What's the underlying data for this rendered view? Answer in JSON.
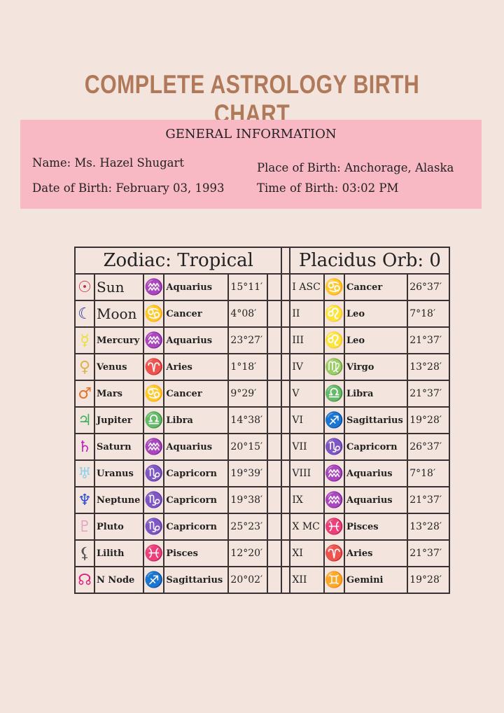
{
  "title": "COMPLETE ASTROLOGY BIRTH CHART",
  "general": {
    "heading": "GENERAL INFORMATION",
    "name": "Name: Ms. Hazel Shugart",
    "dob": "Date of Birth: February 03, 1993",
    "place": "Place of Birth: Anchorage, Alaska",
    "time": "Time of Birth: 03:02 PM"
  },
  "table": {
    "zodiac_header": "Zodiac: Tropical",
    "orb_header": "Placidus Orb: 0",
    "planets": [
      {
        "glyph": "☉",
        "color": "#c0304a",
        "name": "Sun",
        "sign_glyph": "♒",
        "sign_color": "#6a6ae0",
        "sign": "Aquarius",
        "degree": "15°11′"
      },
      {
        "glyph": "☾",
        "color": "#2a3aa0",
        "name": "Moon",
        "sign_glyph": "♋",
        "sign_color": "#4cbb70",
        "sign": "Cancer",
        "degree": "4°08′"
      },
      {
        "glyph": "☿",
        "color": "#e8e030",
        "name": "Mercury",
        "sign_glyph": "♒",
        "sign_color": "#6a6ae0",
        "sign": "Aquarius",
        "degree": "23°27′"
      },
      {
        "glyph": "♀",
        "color": "#e0b050",
        "name": "Venus",
        "sign_glyph": "♈",
        "sign_color": "#c02040",
        "sign": "Aries",
        "degree": "1°18′"
      },
      {
        "glyph": "♂",
        "color": "#e87020",
        "name": "Mars",
        "sign_glyph": "♋",
        "sign_color": "#4cbb70",
        "sign": "Cancer",
        "degree": "9°29′"
      },
      {
        "glyph": "♃",
        "color": "#40b060",
        "name": "Jupiter",
        "sign_glyph": "♎",
        "sign_color": "#e0308a",
        "sign": "Libra",
        "degree": "14°38′"
      },
      {
        "glyph": "♄",
        "color": "#c020c0",
        "name": "Saturn",
        "sign_glyph": "♒",
        "sign_color": "#6a6ae0",
        "sign": "Aquarius",
        "degree": "20°15′"
      },
      {
        "glyph": "♅",
        "color": "#90d0e8",
        "name": "Uranus",
        "sign_glyph": "♑",
        "sign_color": "#f0a020",
        "sign": "Capricorn",
        "degree": "19°39′"
      },
      {
        "glyph": "♆",
        "color": "#3050d0",
        "name": "Neptune",
        "sign_glyph": "♑",
        "sign_color": "#f0a020",
        "sign": "Capricorn",
        "degree": "19°38′"
      },
      {
        "glyph": "♇",
        "color": "#e8a0c0",
        "name": "Pluto",
        "sign_glyph": "♑",
        "sign_color": "#f0a020",
        "sign": "Capricorn",
        "degree": "25°23′"
      },
      {
        "glyph": "⚸",
        "color": "#555555",
        "name": "Lilith",
        "sign_glyph": "♓",
        "sign_color": "#f0b8c0",
        "sign": "Pisces",
        "degree": "12°20′"
      },
      {
        "glyph": "☊",
        "color": "#e02080",
        "name": "N Node",
        "sign_glyph": "♐",
        "sign_color": "#e8e020",
        "sign": "Sagittarius",
        "degree": "20°02′"
      }
    ],
    "houses": [
      {
        "house": "I ASC",
        "sign_glyph": "♋",
        "sign_color": "#4cbb70",
        "sign": "Cancer",
        "degree": "26°37′"
      },
      {
        "house": "II",
        "sign_glyph": "♌",
        "sign_color": "#f08020",
        "sign": "Leo",
        "degree": "7°18′"
      },
      {
        "house": "III",
        "sign_glyph": "♌",
        "sign_color": "#f08020",
        "sign": "Leo",
        "degree": "21°37′"
      },
      {
        "house": "IV",
        "sign_glyph": "♍",
        "sign_color": "#4040c0",
        "sign": "Virgo",
        "degree": "13°28′"
      },
      {
        "house": "V",
        "sign_glyph": "♎",
        "sign_color": "#e0308a",
        "sign": "Libra",
        "degree": "21°37′"
      },
      {
        "house": "VI",
        "sign_glyph": "♐",
        "sign_color": "#e8e020",
        "sign": "Sagittarius",
        "degree": "19°28′"
      },
      {
        "house": "VII",
        "sign_glyph": "♑",
        "sign_color": "#f0a020",
        "sign": "Capricorn",
        "degree": "26°37′"
      },
      {
        "house": "VIII",
        "sign_glyph": "♒",
        "sign_color": "#6a6ae0",
        "sign": "Aquarius",
        "degree": "7°18′"
      },
      {
        "house": "IX",
        "sign_glyph": "♒",
        "sign_color": "#6a6ae0",
        "sign": "Aquarius",
        "degree": "21°37′"
      },
      {
        "house": "X MC",
        "sign_glyph": "♓",
        "sign_color": "#f0b8c0",
        "sign": "Pisces",
        "degree": "13°28′"
      },
      {
        "house": "XI",
        "sign_glyph": "♈",
        "sign_color": "#c02040",
        "sign": "Aries",
        "degree": "21°37′"
      },
      {
        "house": "XII",
        "sign_glyph": "♊",
        "sign_color": "#333333",
        "sign": "Gemini",
        "degree": "19°28′"
      }
    ]
  }
}
